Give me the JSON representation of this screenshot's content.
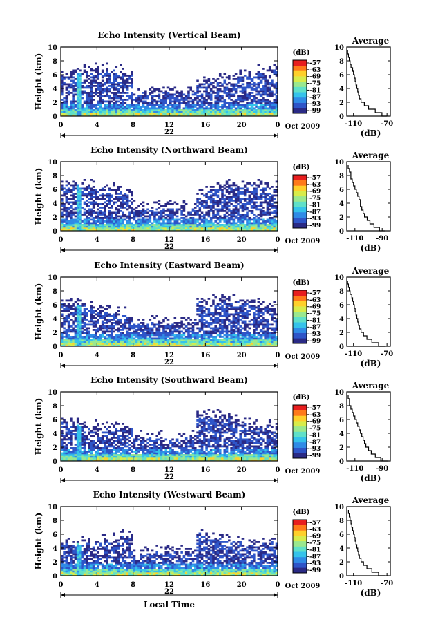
{
  "chart_data": {
    "type": "heatmap",
    "x_label": "Local Time",
    "x_ticks": [
      "0",
      "4",
      "8",
      "12",
      "16",
      "20",
      "0"
    ],
    "date_day": "22",
    "date_month_year": "Oct 2009",
    "y_label": "Height (km)",
    "y_ticks": [
      "0",
      "2",
      "4",
      "6",
      "8",
      "10"
    ],
    "ylim": [
      0,
      10
    ],
    "xlim": [
      0,
      24
    ],
    "colorbar_unit": "(dB)",
    "colorbar_ticks": [
      "-57",
      "-63",
      "-69",
      "-75",
      "-81",
      "-87",
      "-93",
      "-99"
    ],
    "colorscale": [
      "#2a2a86",
      "#2e55c8",
      "#2f8be6",
      "#35c3ea",
      "#5fe0c8",
      "#9ae88e",
      "#d8ec4a",
      "#ffd02a",
      "#ff7a1a",
      "#e81e1e"
    ],
    "panels": [
      {
        "title": "Echo Intensity (Vertical Beam)",
        "avg_title": "Average",
        "avg_xlabel": "(dB)",
        "avg_xticks": [
          "-110",
          "-70"
        ],
        "avg_xlim": [
          -118,
          -66
        ],
        "avg_height_km": [
          0,
          0.5,
          1,
          1.5,
          2,
          2.5,
          3,
          3.5,
          4,
          4.5,
          5,
          5.5,
          6,
          6.5,
          7,
          7.5,
          8,
          8.5,
          9,
          9.5
        ],
        "avg_db": [
          -70,
          -76,
          -84,
          -92,
          -97,
          -101,
          -103,
          -104,
          -105,
          -106,
          -107,
          -108,
          -109,
          -110,
          -111,
          -113,
          -114,
          -115,
          -116,
          -117
        ]
      },
      {
        "title": "Echo Intensity (Northward Beam)",
        "avg_title": "Average",
        "avg_xlabel": "(dB)",
        "avg_xticks": [
          "-110",
          "-90"
        ],
        "avg_xlim": [
          -116,
          -84
        ],
        "avg_height_km": [
          0,
          0.5,
          1,
          1.5,
          2,
          2.5,
          3,
          3.5,
          4,
          4.5,
          5,
          5.5,
          6,
          6.5,
          7,
          7.5,
          8,
          8.5,
          9,
          9.5
        ],
        "avg_db": [
          -88,
          -92,
          -96,
          -99,
          -101,
          -103,
          -104,
          -105,
          -106,
          -106,
          -107,
          -108,
          -109,
          -110,
          -111,
          -112,
          -113,
          -113,
          -114,
          -115
        ]
      },
      {
        "title": "Echo Intensity (Eastward Beam)",
        "avg_title": "Average",
        "avg_xlabel": "(dB)",
        "avg_xticks": [
          "-110",
          "-70"
        ],
        "avg_xlim": [
          -118,
          -66
        ],
        "avg_height_km": [
          0,
          0.5,
          1,
          1.5,
          2,
          2.5,
          3,
          3.5,
          4,
          4.5,
          5,
          5.5,
          6,
          6.5,
          7,
          7.5,
          8,
          8.5,
          9,
          9.5
        ],
        "avg_db": [
          -72,
          -80,
          -88,
          -94,
          -98,
          -101,
          -103,
          -104,
          -105,
          -106,
          -107,
          -108,
          -109,
          -110,
          -111,
          -112,
          -114,
          -115,
          -116,
          -117
        ]
      },
      {
        "title": "Echo Intensity (Southward Beam)",
        "avg_title": "Average",
        "avg_xlabel": "(dB)",
        "avg_xticks": [
          "-110",
          "-90"
        ],
        "avg_xlim": [
          -116,
          -84
        ],
        "avg_height_km": [
          0,
          0.5,
          1,
          1.5,
          2,
          2.5,
          3,
          3.5,
          4,
          4.5,
          5,
          5.5,
          6,
          6.5,
          7,
          7.5,
          8,
          8.5,
          9,
          9.5
        ],
        "avg_db": [
          -86,
          -91,
          -95,
          -98,
          -100,
          -102,
          -103,
          -104,
          -105,
          -106,
          -107,
          -108,
          -109,
          -110,
          -111,
          -112,
          -113,
          -114,
          -114,
          -115
        ]
      },
      {
        "title": "Echo Intensity (Westward Beam)",
        "avg_title": "Average",
        "avg_xlabel": "(dB)",
        "avg_xticks": [
          "-110",
          "-70"
        ],
        "avg_xlim": [
          -118,
          -66
        ],
        "avg_height_km": [
          0,
          0.5,
          1,
          1.5,
          2,
          2.5,
          3,
          3.5,
          4,
          4.5,
          5,
          5.5,
          6,
          6.5,
          7,
          7.5,
          8,
          8.5,
          9,
          9.5
        ],
        "avg_db": [
          -72,
          -80,
          -88,
          -94,
          -98,
          -101,
          -103,
          -104,
          -105,
          -106,
          -107,
          -108,
          -109,
          -110,
          -111,
          -112,
          -113,
          -114,
          -115,
          -116
        ]
      }
    ]
  }
}
